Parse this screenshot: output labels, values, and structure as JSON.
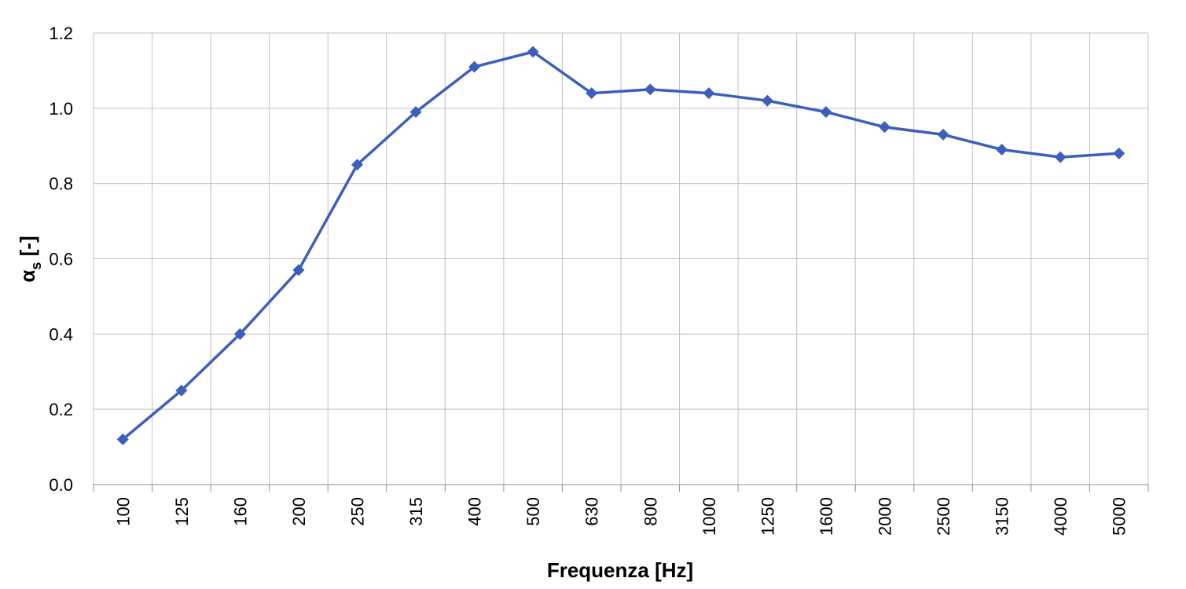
{
  "chart_data": {
    "type": "line",
    "title": "",
    "xlabel": "Frequenza [Hz]",
    "ylabel": "α",
    "ylabel_subscript": "s",
    "ylabel_suffix": " [-]",
    "categories": [
      "100",
      "125",
      "160",
      "200",
      "250",
      "315",
      "400",
      "500",
      "630",
      "800",
      "1000",
      "1250",
      "1600",
      "2000",
      "2500",
      "3150",
      "4000",
      "5000"
    ],
    "series": [
      {
        "values": [
          0.12,
          0.25,
          0.4,
          0.57,
          0.85,
          0.99,
          1.11,
          1.15,
          1.04,
          1.05,
          1.04,
          1.02,
          0.99,
          0.95,
          0.93,
          0.89,
          0.87,
          0.88
        ],
        "color": "#3c5fbd",
        "marker": "diamond"
      }
    ],
    "ylim": [
      0,
      1.2
    ],
    "yticks": [
      "0.0",
      "0.2",
      "0.4",
      "0.6",
      "0.8",
      "1.0",
      "1.2"
    ],
    "grid": true,
    "legend": "none",
    "colors": {
      "grid": "#bfbfbf",
      "axis": "#8c8c8c",
      "series": "#3c5fbd"
    }
  }
}
